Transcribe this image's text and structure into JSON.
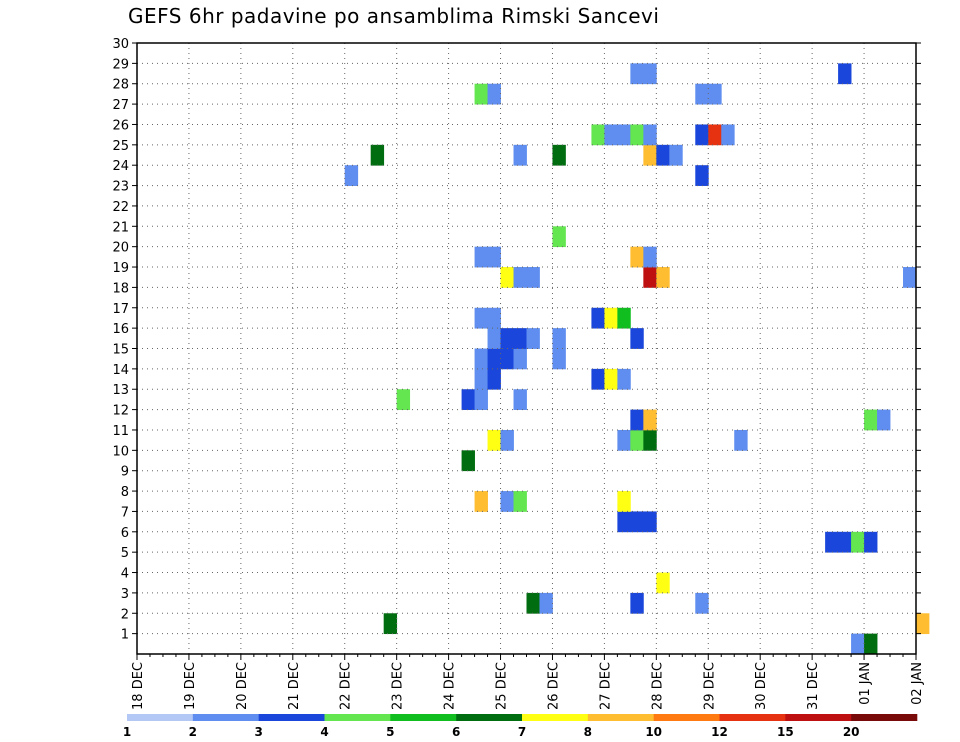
{
  "chart_data": {
    "type": "heatmap",
    "title": "GEFS 6hr padavine po ansamblima Rimski Sancevi",
    "xlabel": "",
    "ylabel": "",
    "x_ticks": [
      "18 DEC",
      "19 DEC",
      "20 DEC",
      "21 DEC",
      "22 DEC",
      "23 DEC",
      "24 DEC",
      "25 DEC",
      "26 DEC",
      "27 DEC",
      "28 DEC",
      "29 DEC",
      "30 DEC",
      "31 DEC",
      "01 JAN",
      "02 JAN"
    ],
    "y_ticks": [
      "1",
      "2",
      "3",
      "4",
      "5",
      "6",
      "7",
      "8",
      "9",
      "10",
      "11",
      "12",
      "13",
      "14",
      "15",
      "16",
      "17",
      "18",
      "19",
      "20",
      "21",
      "22",
      "23",
      "24",
      "25",
      "26",
      "27",
      "28",
      "29",
      "30"
    ],
    "xlim": [
      "18 DEC",
      "02 JAN"
    ],
    "ylim": [
      0,
      30
    ],
    "grid": true,
    "colorbar": {
      "levels": [
        "1",
        "2",
        "3",
        "4",
        "5",
        "6",
        "7",
        "8",
        "10",
        "12",
        "15",
        "20"
      ],
      "colors": [
        "#b4c8f5",
        "#5f8ef0",
        "#1a46db",
        "#64e650",
        "#10be20",
        "#006e10",
        "#ffff14",
        "#ffbe32",
        "#ff7a10",
        "#e63210",
        "#be1010",
        "#780a0a"
      ]
    },
    "cells": [
      {
        "member": 0,
        "step": 55,
        "level": 1
      },
      {
        "member": 0,
        "step": 56,
        "level": 5
      },
      {
        "member": 1,
        "step": 19,
        "level": 5
      },
      {
        "member": 1,
        "step": 60,
        "level": 7
      },
      {
        "member": 2,
        "step": 30,
        "level": 5
      },
      {
        "member": 2,
        "step": 31,
        "level": 1
      },
      {
        "member": 2,
        "step": 38,
        "level": 2
      },
      {
        "member": 2,
        "step": 43,
        "level": 1
      },
      {
        "member": 3,
        "step": 40,
        "level": 6
      },
      {
        "member": 5,
        "step": 53,
        "level": 2
      },
      {
        "member": 5,
        "step": 54,
        "level": 2
      },
      {
        "member": 5,
        "step": 55,
        "level": 3
      },
      {
        "member": 5,
        "step": 56,
        "level": 2
      },
      {
        "member": 6,
        "step": 37,
        "level": 2
      },
      {
        "member": 6,
        "step": 38,
        "level": 2
      },
      {
        "member": 6,
        "step": 39,
        "level": 2
      },
      {
        "member": 7,
        "step": 26,
        "level": 7
      },
      {
        "member": 7,
        "step": 28,
        "level": 1
      },
      {
        "member": 7,
        "step": 29,
        "level": 3
      },
      {
        "member": 7,
        "step": 37,
        "level": 6
      },
      {
        "member": 9,
        "step": 25,
        "level": 5
      },
      {
        "member": 10,
        "step": 27,
        "level": 6
      },
      {
        "member": 10,
        "step": 28,
        "level": 1
      },
      {
        "member": 10,
        "step": 37,
        "level": 1
      },
      {
        "member": 10,
        "step": 38,
        "level": 3
      },
      {
        "member": 10,
        "step": 39,
        "level": 5
      },
      {
        "member": 10,
        "step": 46,
        "level": 1
      },
      {
        "member": 11,
        "step": 38,
        "level": 2
      },
      {
        "member": 11,
        "step": 39,
        "level": 7
      },
      {
        "member": 11,
        "step": 56,
        "level": 3
      },
      {
        "member": 11,
        "step": 57,
        "level": 1
      },
      {
        "member": 12,
        "step": 20,
        "level": 3
      },
      {
        "member": 12,
        "step": 25,
        "level": 2
      },
      {
        "member": 12,
        "step": 26,
        "level": 1
      },
      {
        "member": 12,
        "step": 29,
        "level": 1
      },
      {
        "member": 13,
        "step": 26,
        "level": 1
      },
      {
        "member": 13,
        "step": 27,
        "level": 2
      },
      {
        "member": 13,
        "step": 35,
        "level": 2
      },
      {
        "member": 13,
        "step": 36,
        "level": 6
      },
      {
        "member": 13,
        "step": 37,
        "level": 1
      },
      {
        "member": 14,
        "step": 26,
        "level": 1
      },
      {
        "member": 14,
        "step": 27,
        "level": 2
      },
      {
        "member": 14,
        "step": 28,
        "level": 2
      },
      {
        "member": 14,
        "step": 29,
        "level": 1
      },
      {
        "member": 14,
        "step": 32,
        "level": 1
      },
      {
        "member": 15,
        "step": 27,
        "level": 1
      },
      {
        "member": 15,
        "step": 28,
        "level": 2
      },
      {
        "member": 15,
        "step": 29,
        "level": 2
      },
      {
        "member": 15,
        "step": 30,
        "level": 1
      },
      {
        "member": 15,
        "step": 32,
        "level": 1
      },
      {
        "member": 15,
        "step": 38,
        "level": 2
      },
      {
        "member": 16,
        "step": 26,
        "level": 1
      },
      {
        "member": 16,
        "step": 27,
        "level": 1
      },
      {
        "member": 16,
        "step": 35,
        "level": 2
      },
      {
        "member": 16,
        "step": 36,
        "level": 6
      },
      {
        "member": 16,
        "step": 37,
        "level": 4
      },
      {
        "member": 18,
        "step": 28,
        "level": 6
      },
      {
        "member": 18,
        "step": 29,
        "level": 1
      },
      {
        "member": 18,
        "step": 30,
        "level": 1
      },
      {
        "member": 18,
        "step": 39,
        "level": 10
      },
      {
        "member": 18,
        "step": 40,
        "level": 7
      },
      {
        "member": 18,
        "step": 59,
        "level": 1
      },
      {
        "member": 19,
        "step": 26,
        "level": 1
      },
      {
        "member": 19,
        "step": 27,
        "level": 1
      },
      {
        "member": 19,
        "step": 38,
        "level": 7
      },
      {
        "member": 19,
        "step": 39,
        "level": 1
      },
      {
        "member": 20,
        "step": 32,
        "level": 3
      },
      {
        "member": 23,
        "step": 16,
        "level": 1
      },
      {
        "member": 23,
        "step": 43,
        "level": 2
      },
      {
        "member": 24,
        "step": 18,
        "level": 5
      },
      {
        "member": 24,
        "step": 29,
        "level": 1
      },
      {
        "member": 24,
        "step": 32,
        "level": 5
      },
      {
        "member": 24,
        "step": 39,
        "level": 7
      },
      {
        "member": 24,
        "step": 40,
        "level": 2
      },
      {
        "member": 24,
        "step": 41,
        "level": 1
      },
      {
        "member": 25,
        "step": 35,
        "level": 3
      },
      {
        "member": 25,
        "step": 36,
        "level": 1
      },
      {
        "member": 25,
        "step": 37,
        "level": 1
      },
      {
        "member": 25,
        "step": 38,
        "level": 3
      },
      {
        "member": 25,
        "step": 39,
        "level": 1
      },
      {
        "member": 25,
        "step": 43,
        "level": 2
      },
      {
        "member": 25,
        "step": 44,
        "level": 9
      },
      {
        "member": 25,
        "step": 45,
        "level": 1
      },
      {
        "member": 27,
        "step": 26,
        "level": 3
      },
      {
        "member": 27,
        "step": 27,
        "level": 1
      },
      {
        "member": 27,
        "step": 43,
        "level": 1
      },
      {
        "member": 27,
        "step": 44,
        "level": 1
      },
      {
        "member": 28,
        "step": 38,
        "level": 1
      },
      {
        "member": 28,
        "step": 39,
        "level": 1
      },
      {
        "member": 28,
        "step": 54,
        "level": 2
      }
    ]
  }
}
